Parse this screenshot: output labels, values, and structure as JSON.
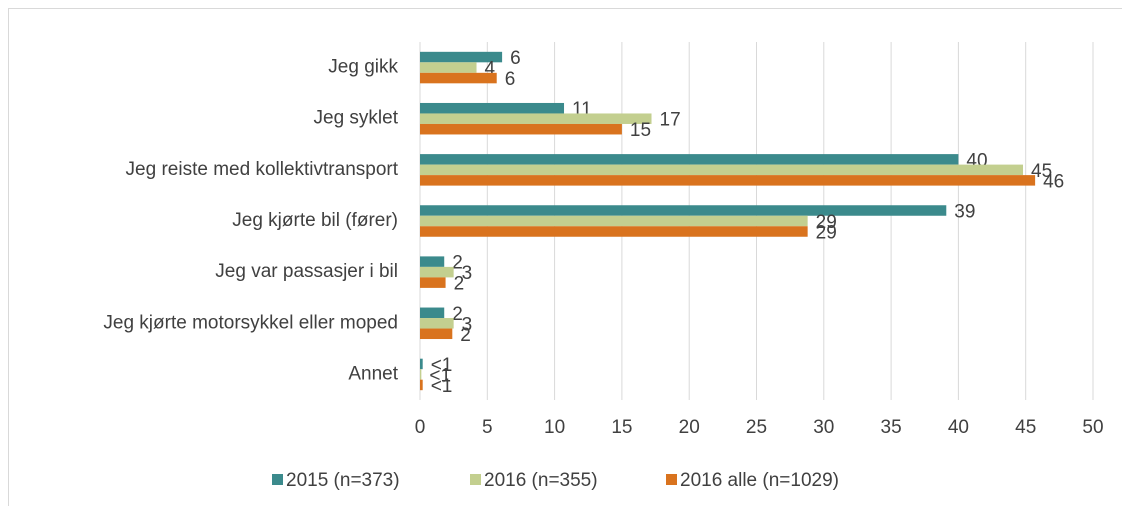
{
  "chart_data": {
    "type": "hbar",
    "categories": [
      "Jeg gikk",
      "Jeg syklet",
      "Jeg reiste med kollektivtransport",
      "Jeg kjørte bil (fører)",
      "Jeg var passasjer i bil",
      "Jeg kjørte motorsykkel eller moped",
      "Annet"
    ],
    "series": [
      {
        "name": "2015 (n=373)",
        "color": "#3b8a8c",
        "values": [
          6.1,
          10.7,
          40.0,
          39.1,
          1.8,
          1.8,
          0.2
        ],
        "value_labels": [
          "6",
          "11",
          "40",
          "39",
          "2",
          "2",
          "<1"
        ]
      },
      {
        "name": "2016 (n=355)",
        "color": "#c3cf8f",
        "values": [
          4.2,
          17.2,
          44.8,
          28.8,
          2.5,
          2.5,
          0.1
        ],
        "value_labels": [
          "4",
          "17",
          "45",
          "29",
          "3",
          "3",
          "<1"
        ]
      },
      {
        "name": "2016 alle (n=1029)",
        "color": "#d9731e",
        "values": [
          5.7,
          15.0,
          45.7,
          28.8,
          1.9,
          2.4,
          0.2
        ],
        "value_labels": [
          "6",
          "15",
          "46",
          "29",
          "2",
          "2",
          "<1"
        ]
      }
    ],
    "xlim": [
      0,
      50
    ],
    "xticks": [
      0,
      5,
      10,
      15,
      20,
      25,
      30,
      35,
      40,
      45,
      50
    ],
    "grid": true
  }
}
